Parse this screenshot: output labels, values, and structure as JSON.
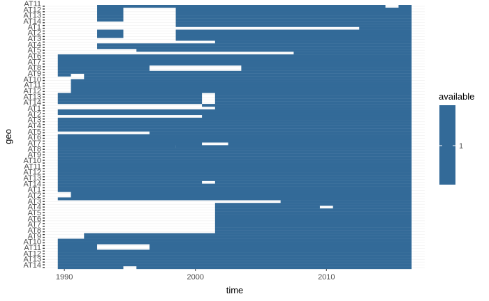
{
  "chart_data": {
    "type": "heatmap",
    "xlabel": "time",
    "ylabel": "geo",
    "x_ticks": [
      1990,
      2000,
      2010
    ],
    "xlim": [
      1988.5,
      2017.5
    ],
    "row_count": 96,
    "grid": true,
    "legend": {
      "title": "available",
      "placement": "right",
      "tick_label": "1",
      "value": 1
    },
    "y_tick_labels": [
      "AT14",
      "AT13",
      "AT12",
      "AT11",
      "AT10",
      "AT9",
      "AT8",
      "AT7",
      "AT6",
      "AT5",
      "AT4",
      "AT3",
      "AT2",
      "AT1"
    ],
    "colors": {
      "fill": "#336a98",
      "grid": "#ebebeb",
      "background": "#ffffff",
      "axis_text": "#4d4d4d",
      "ytick_text": "#4d4d4d"
    },
    "rows": [
      {
        "row": 0,
        "spans": [
          [
            1989.5,
            1994.5
          ],
          [
            1995.5,
            2016.5
          ]
        ]
      },
      {
        "row": 1,
        "spans": [
          [
            1989.5,
            2016.5
          ]
        ]
      },
      {
        "row": 2,
        "spans": [
          [
            1989.5,
            2016.5
          ]
        ]
      },
      {
        "row": 3,
        "spans": [
          [
            1989.5,
            2016.5
          ]
        ]
      },
      {
        "row": 4,
        "spans": [
          [
            1989.5,
            2016.5
          ]
        ]
      },
      {
        "row": 5,
        "spans": [
          [
            1989.5,
            2016.5
          ]
        ]
      },
      {
        "row": 6,
        "spans": [
          [
            1989.5,
            2016.5
          ]
        ]
      },
      {
        "row": 7,
        "spans": [
          [
            1989.5,
            1992.5
          ],
          [
            1996.5,
            2016.5
          ]
        ]
      },
      {
        "row": 8,
        "spans": [
          [
            1989.5,
            1992.5
          ],
          [
            1996.5,
            2016.5
          ]
        ]
      },
      {
        "row": 9,
        "spans": [
          [
            1989.5,
            2016.5
          ]
        ]
      },
      {
        "row": 10,
        "spans": [
          [
            1989.5,
            2016.5
          ]
        ]
      },
      {
        "row": 11,
        "spans": [
          [
            1991.5,
            2016.5
          ]
        ]
      },
      {
        "row": 12,
        "spans": [
          [
            1991.5,
            2016.5
          ]
        ]
      },
      {
        "row": 13,
        "spans": [
          [
            2001.5,
            2016.5
          ]
        ]
      },
      {
        "row": 14,
        "spans": [
          [
            2001.5,
            2016.5
          ]
        ]
      },
      {
        "row": 15,
        "spans": [
          [
            2001.5,
            2016.5
          ]
        ]
      },
      {
        "row": 16,
        "spans": [
          [
            2001.5,
            2016.5
          ]
        ]
      },
      {
        "row": 17,
        "spans": [
          [
            2001.5,
            2016.5
          ]
        ]
      },
      {
        "row": 18,
        "spans": [
          [
            2001.5,
            2016.5
          ]
        ]
      },
      {
        "row": 19,
        "spans": [
          [
            2001.5,
            2016.5
          ]
        ]
      },
      {
        "row": 20,
        "spans": [
          [
            2001.5,
            2016.5
          ]
        ]
      },
      {
        "row": 21,
        "spans": [
          [
            2001.5,
            2016.5
          ]
        ]
      },
      {
        "row": 22,
        "spans": [
          [
            2001.5,
            2009.5
          ],
          [
            2010.5,
            2016.5
          ]
        ]
      },
      {
        "row": 23,
        "spans": [
          [
            2001.5,
            2016.5
          ]
        ]
      },
      {
        "row": 24,
        "spans": [
          [
            2006.5,
            2016.5
          ]
        ]
      },
      {
        "row": 25,
        "spans": [
          [
            1989.5,
            2016.5
          ]
        ]
      },
      {
        "row": 26,
        "spans": [
          [
            1990.5,
            2016.5
          ]
        ]
      },
      {
        "row": 27,
        "spans": [
          [
            1990.5,
            2016.5
          ]
        ]
      },
      {
        "row": 28,
        "spans": [
          [
            1989.5,
            2016.5
          ]
        ]
      },
      {
        "row": 29,
        "spans": [
          [
            1989.5,
            2016.5
          ]
        ]
      },
      {
        "row": 30,
        "spans": [
          [
            1989.5,
            2016.5
          ]
        ]
      },
      {
        "row": 31,
        "spans": [
          [
            1989.5,
            2000.5
          ],
          [
            2001.5,
            2016.5
          ]
        ]
      },
      {
        "row": 32,
        "spans": [
          [
            1989.5,
            2016.5
          ]
        ]
      },
      {
        "row": 33,
        "spans": [
          [
            1989.5,
            2016.5
          ]
        ]
      },
      {
        "row": 34,
        "spans": [
          [
            1989.5,
            2016.5
          ]
        ]
      },
      {
        "row": 35,
        "spans": [
          [
            1989.5,
            2016.5
          ]
        ]
      },
      {
        "row": 36,
        "spans": [
          [
            1989.5,
            2016.5
          ]
        ]
      },
      {
        "row": 37,
        "spans": [
          [
            1989.5,
            2016.5
          ]
        ]
      },
      {
        "row": 38,
        "spans": [
          [
            1989.5,
            2016.5
          ]
        ]
      },
      {
        "row": 39,
        "spans": [
          [
            1989.5,
            2016.5
          ]
        ]
      },
      {
        "row": 40,
        "spans": [
          [
            1989.5,
            2016.5
          ]
        ]
      },
      {
        "row": 41,
        "spans": [
          [
            1989.5,
            2016.5
          ]
        ]
      },
      {
        "row": 42,
        "spans": [
          [
            1989.5,
            2016.5
          ]
        ]
      },
      {
        "row": 43,
        "spans": [
          [
            1989.5,
            2016.5
          ]
        ]
      },
      {
        "row": 44,
        "spans": [
          [
            1989.5,
            1998.5
          ],
          [
            1998.5,
            2016.5
          ]
        ]
      },
      {
        "row": 45,
        "spans": [
          [
            1989.5,
            2000.5
          ],
          [
            2002.5,
            2016.5
          ]
        ]
      },
      {
        "row": 46,
        "spans": [
          [
            1989.5,
            2016.5
          ]
        ]
      },
      {
        "row": 47,
        "spans": [
          [
            1989.5,
            2016.5
          ]
        ]
      },
      {
        "row": 48,
        "spans": [
          [
            1989.5,
            2016.5
          ]
        ]
      },
      {
        "row": 49,
        "spans": [
          [
            1996.5,
            2016.5
          ]
        ]
      },
      {
        "row": 50,
        "spans": [
          [
            1989.5,
            2016.5
          ]
        ]
      },
      {
        "row": 51,
        "spans": [
          [
            1989.5,
            2016.5
          ]
        ]
      },
      {
        "row": 52,
        "spans": [
          [
            1989.5,
            2016.5
          ]
        ]
      },
      {
        "row": 53,
        "spans": [
          [
            1989.5,
            2016.5
          ]
        ]
      },
      {
        "row": 54,
        "spans": [
          [
            1989.5,
            2016.5
          ]
        ]
      },
      {
        "row": 55,
        "spans": [
          [
            2000.5,
            2016.5
          ]
        ]
      },
      {
        "row": 56,
        "spans": [
          [
            1989.5,
            2016.5
          ]
        ]
      },
      {
        "row": 57,
        "spans": [
          [
            1989.5,
            2016.5
          ]
        ]
      },
      {
        "row": 58,
        "spans": [
          [
            2001.5,
            2016.5
          ]
        ]
      },
      {
        "row": 59,
        "spans": [
          [
            2000.5,
            2016.5
          ]
        ]
      },
      {
        "row": 60,
        "spans": [
          [
            1989.5,
            2000.5
          ],
          [
            2001.5,
            2016.5
          ]
        ]
      },
      {
        "row": 61,
        "spans": [
          [
            1989.5,
            2000.5
          ],
          [
            2001.5,
            2016.5
          ]
        ]
      },
      {
        "row": 62,
        "spans": [
          [
            1989.5,
            2000.5
          ],
          [
            2001.5,
            2016.5
          ]
        ]
      },
      {
        "row": 63,
        "spans": [
          [
            1989.5,
            2000.5
          ],
          [
            2001.5,
            2016.5
          ]
        ]
      },
      {
        "row": 64,
        "spans": [
          [
            1990.5,
            2016.5
          ]
        ]
      },
      {
        "row": 65,
        "spans": [
          [
            1990.5,
            2016.5
          ]
        ]
      },
      {
        "row": 66,
        "spans": [
          [
            1990.5,
            2016.5
          ]
        ]
      },
      {
        "row": 67,
        "spans": [
          [
            1990.5,
            2016.5
          ]
        ]
      },
      {
        "row": 68,
        "spans": [
          [
            1990.5,
            2016.5
          ]
        ]
      },
      {
        "row": 69,
        "spans": [
          [
            1991.5,
            2016.5
          ]
        ]
      },
      {
        "row": 70,
        "spans": [
          [
            1989.5,
            1990.5
          ],
          [
            1991.5,
            2016.5
          ]
        ]
      },
      {
        "row": 71,
        "spans": [
          [
            1989.5,
            2016.5
          ]
        ]
      },
      {
        "row": 72,
        "spans": [
          [
            1989.5,
            1996.5
          ],
          [
            2003.5,
            2016.5
          ]
        ]
      },
      {
        "row": 73,
        "spans": [
          [
            1989.5,
            1996.5
          ],
          [
            2003.5,
            2016.5
          ]
        ]
      },
      {
        "row": 74,
        "spans": [
          [
            1989.5,
            2016.5
          ]
        ]
      },
      {
        "row": 75,
        "spans": [
          [
            1989.5,
            2016.5
          ]
        ]
      },
      {
        "row": 76,
        "spans": [
          [
            1989.5,
            2016.5
          ]
        ]
      },
      {
        "row": 77,
        "spans": [
          [
            1989.5,
            2016.5
          ]
        ]
      },
      {
        "row": 78,
        "spans": [
          [
            2007.5,
            2016.5
          ]
        ]
      },
      {
        "row": 79,
        "spans": [
          [
            1995.5,
            2016.5
          ]
        ]
      },
      {
        "row": 80,
        "spans": [
          [
            1992.5,
            2016.5
          ]
        ]
      },
      {
        "row": 81,
        "spans": [
          [
            1992.5,
            2016.5
          ]
        ]
      },
      {
        "row": 82,
        "spans": [
          [
            2001.5,
            2016.5
          ]
        ]
      },
      {
        "row": 83,
        "spans": [
          [
            1998.5,
            2016.5
          ]
        ]
      },
      {
        "row": 84,
        "spans": [
          [
            1992.5,
            1994.5
          ],
          [
            1998.5,
            2016.5
          ]
        ]
      },
      {
        "row": 85,
        "spans": [
          [
            1992.5,
            1994.5
          ],
          [
            1998.5,
            2016.5
          ]
        ]
      },
      {
        "row": 86,
        "spans": [
          [
            1992.5,
            1994.5
          ],
          [
            1998.5,
            2016.5
          ]
        ]
      },
      {
        "row": 87,
        "spans": [
          [
            2012.5,
            2016.5
          ]
        ]
      },
      {
        "row": 88,
        "spans": [
          [
            1998.5,
            2016.5
          ]
        ]
      },
      {
        "row": 89,
        "spans": [
          [
            1998.5,
            2016.5
          ]
        ]
      },
      {
        "row": 90,
        "spans": [
          [
            1992.5,
            1994.5
          ],
          [
            1998.5,
            2016.5
          ]
        ]
      },
      {
        "row": 91,
        "spans": [
          [
            1992.5,
            1994.5
          ],
          [
            1998.5,
            2016.5
          ]
        ]
      },
      {
        "row": 92,
        "spans": [
          [
            1992.5,
            1994.5
          ],
          [
            1998.5,
            2016.5
          ]
        ]
      },
      {
        "row": 93,
        "spans": [
          [
            1992.5,
            1994.5
          ],
          [
            1998.5,
            2016.5
          ]
        ]
      },
      {
        "row": 94,
        "spans": [
          [
            1992.5,
            1994.5
          ],
          [
            1998.5,
            2016.5
          ]
        ]
      },
      {
        "row": 95,
        "spans": [
          [
            1992.5,
            2014.5
          ],
          [
            2015.5,
            2016.5
          ]
        ]
      }
    ]
  }
}
